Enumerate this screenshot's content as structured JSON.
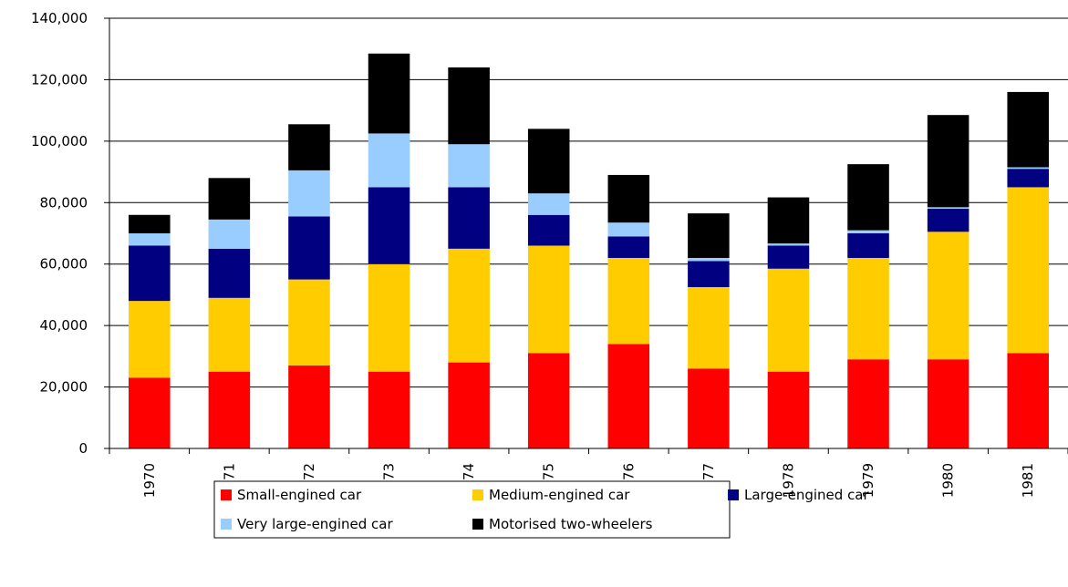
{
  "chart_data": {
    "type": "stacked_bar",
    "categories": [
      "1970",
      "1971",
      "1972",
      "1973",
      "1974",
      "1975",
      "1976",
      "1977",
      "1978",
      "1979",
      "1980",
      "1981"
    ],
    "series": [
      {
        "name": "Small-engined car",
        "color": "#ff0000",
        "values": [
          23000,
          25000,
          27000,
          25000,
          28000,
          31000,
          34000,
          26000,
          25000,
          29000,
          29000,
          31000
        ]
      },
      {
        "name": "Medium-engined car",
        "color": "#ffcc00",
        "values": [
          25000,
          24000,
          28000,
          35000,
          37000,
          35000,
          28000,
          26500,
          33500,
          33000,
          41500,
          54000
        ]
      },
      {
        "name": "Large-engined car",
        "color": "#000080",
        "values": [
          18000,
          16000,
          20500,
          25000,
          20000,
          10000,
          7000,
          8500,
          7500,
          8000,
          7500,
          6000
        ]
      },
      {
        "name": "Very large-engined car",
        "color": "#99ccff",
        "values": [
          4000,
          9500,
          15000,
          17500,
          14000,
          7000,
          4500,
          1000,
          700,
          1000,
          500,
          500
        ]
      },
      {
        "name": "Motorised two-wheelers",
        "color": "#000000",
        "values": [
          6000,
          13500,
          15000,
          26000,
          25000,
          21000,
          15500,
          14500,
          15000,
          21500,
          30000,
          24500
        ]
      }
    ],
    "ylim": [
      0,
      140000
    ],
    "yticks": [
      0,
      {
        "value": 20000,
        "label": "20,000"
      },
      {
        "value": 40000,
        "label": "40,000"
      },
      {
        "value": 60000,
        "label": "60,000"
      },
      {
        "value": 80000,
        "label": "80,000"
      },
      {
        "value": 100000,
        "label": "100,000"
      },
      {
        "value": 120000,
        "label": "120,000"
      },
      {
        "value": 140000,
        "label": "140,000"
      }
    ],
    "grid": true,
    "legend": "bottom"
  }
}
